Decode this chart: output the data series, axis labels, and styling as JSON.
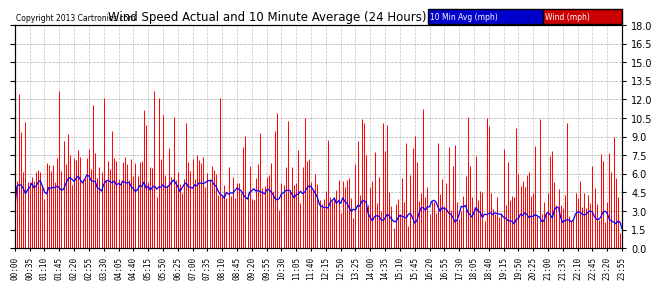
{
  "title": "Wind Speed Actual and 10 Minute Average (24 Hours) (New) 20131214",
  "copyright": "Copyright 2013 Cartronics.com",
  "legend_label1": "10 Min Avg (mph)",
  "legend_label2": "Wind (mph)",
  "legend_color1": "#0000cc",
  "legend_color2": "#cc0000",
  "bg_color": "#ffffff",
  "plot_bg_color": "#ffffff",
  "grid_color": "#999999",
  "title_color": "#000000",
  "ylim": [
    0.0,
    18.0
  ],
  "yticks": [
    0.0,
    1.5,
    3.0,
    4.5,
    6.0,
    7.5,
    9.0,
    10.5,
    12.0,
    13.5,
    15.0,
    16.5,
    18.0
  ],
  "n_points": 288,
  "seed": 42,
  "tick_every": 12
}
